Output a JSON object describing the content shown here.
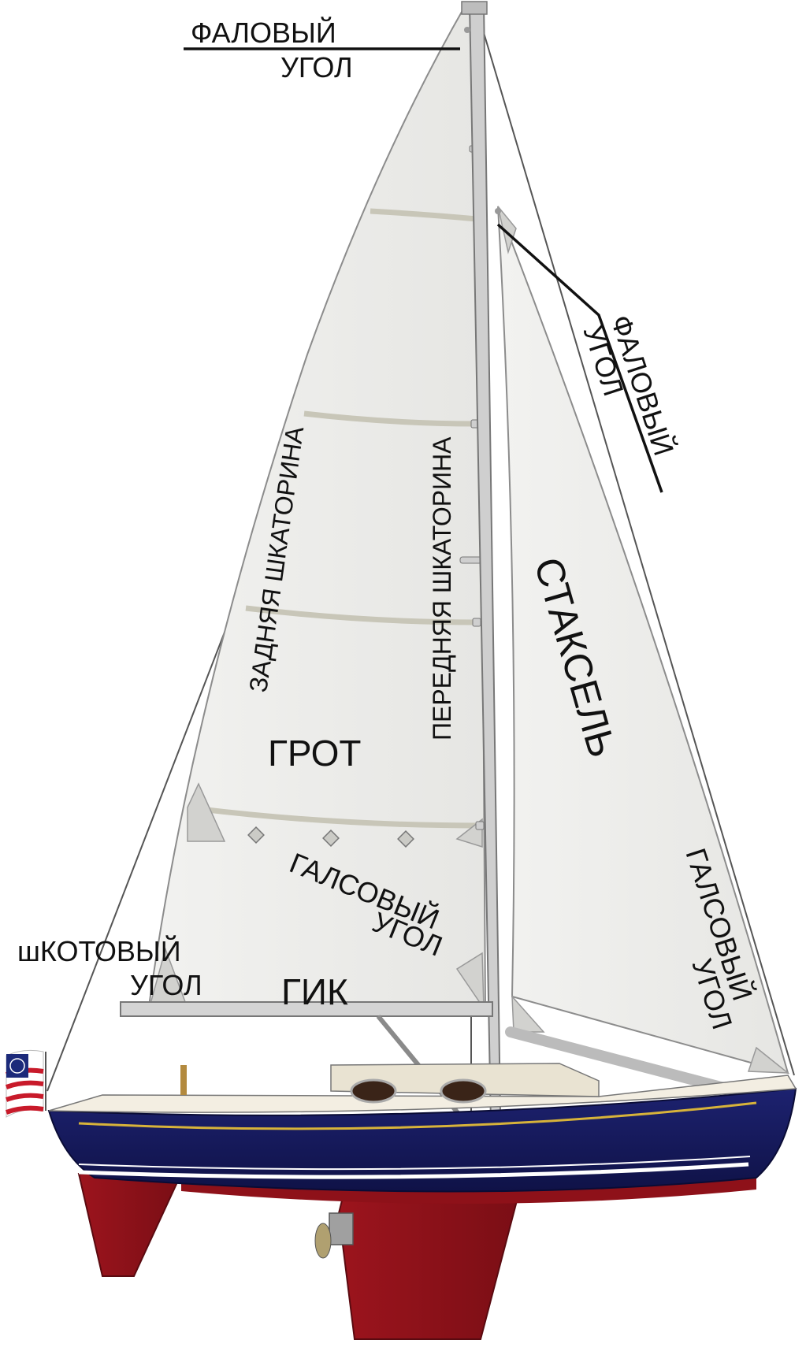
{
  "labels": {
    "head_main_line1": "ФАЛОВЫЙ",
    "head_main_line2": "УГОЛ",
    "head_jib_line1": "ФАЛОВЫЙ",
    "head_jib_line2": "УГОЛ",
    "leech": "ЗАДНЯЯ ШКАТОРИНА",
    "luff": "ПЕРЕДНЯЯ ШКАТОРИНА",
    "jib": "СТАКСЕЛЬ",
    "mainsail": "ГРОТ",
    "tack_main_line1": "ГАЛСОВЫЙ",
    "tack_main_line2": "УГОЛ",
    "tack_jib_line1": "ГАЛСОВЫЙ",
    "tack_jib_line2": "УГОЛ",
    "clew_line1": "шКОТОВЫЙ",
    "clew_line2": "УГОЛ",
    "boom": "ГИК"
  },
  "colors": {
    "sail": "#eeeeec",
    "hull": "#161a5e",
    "keel": "#8e1119",
    "boot_stripe": "#ffffff",
    "gold_stripe": "#d7b33a",
    "deck": "#f3eee2",
    "mast": "#cfcfcf"
  }
}
